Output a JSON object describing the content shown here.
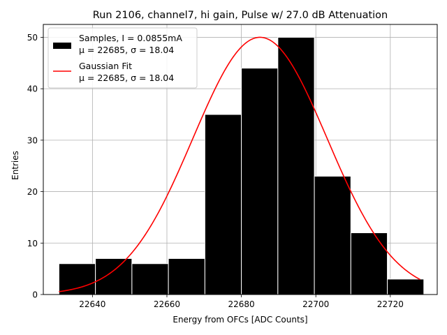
{
  "chart_data": {
    "type": "bar",
    "title": "Run 2106, channel7, hi gain, Pulse w/ 27.0 dB Attenuation",
    "xlabel": "Energy from OFCs [ADC Counts]",
    "ylabel": "Entries",
    "xlim": [
      22626.8,
      22732.6
    ],
    "ylim": [
      0,
      52.5
    ],
    "xticks": [
      22640,
      22660,
      22680,
      22700,
      22720
    ],
    "yticks": [
      0,
      10,
      20,
      30,
      40,
      50
    ],
    "grid": true,
    "legend_position": "top-left",
    "histogram": {
      "name": "Samples, I = 0.0855mA",
      "name_line2": "μ = 22685, σ = 18.04",
      "color": "#000000",
      "edgecolor": "#ffffff",
      "bin_edges": [
        22631,
        22640.8,
        22650.6,
        22660.4,
        22670.2,
        22680,
        22689.8,
        22699.6,
        22709.4,
        22719.2,
        22729
      ],
      "counts": [
        6,
        7,
        6,
        7,
        35,
        44,
        50,
        23,
        12,
        3
      ]
    },
    "fit": {
      "name": "Gaussian Fit",
      "name_line2": "μ = 22685, σ = 18.04",
      "color": "#ff0000",
      "amplitude": 50,
      "mu": 22685,
      "sigma": 18.04,
      "x_range": [
        22631,
        22728
      ]
    }
  }
}
